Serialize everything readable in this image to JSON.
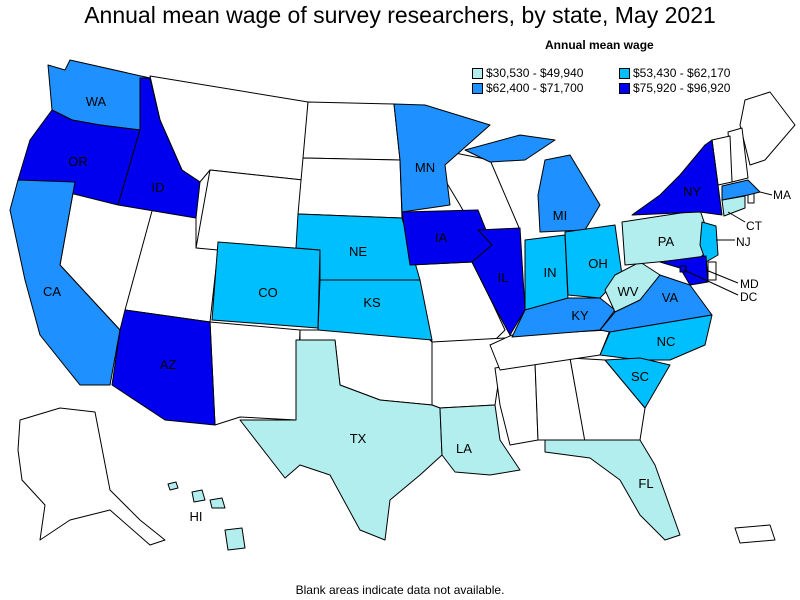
{
  "title": "Annual mean wage of survey researchers, by state, May 2021",
  "legend": {
    "title": "Annual mean wage",
    "items": [
      {
        "label": "$30,530 - $49,940",
        "color": "#b3eeee"
      },
      {
        "label": "$53,430 - $62,170",
        "color": "#00bfff"
      },
      {
        "label": "$62,400 - $71,700",
        "color": "#1e90ff"
      },
      {
        "label": "$75,920 - $96,920",
        "color": "#0000ee"
      }
    ]
  },
  "footnote": "Blank areas indicate data not available.",
  "states": {
    "WA": {
      "label": "WA",
      "bin": 2
    },
    "OR": {
      "label": "OR",
      "bin": 3
    },
    "CA": {
      "label": "CA",
      "bin": 2
    },
    "ID": {
      "label": "ID",
      "bin": 3
    },
    "AZ": {
      "label": "AZ",
      "bin": 3
    },
    "CO": {
      "label": "CO",
      "bin": 1
    },
    "NE": {
      "label": "NE",
      "bin": 1
    },
    "KS": {
      "label": "KS",
      "bin": 1
    },
    "MN": {
      "label": "MN",
      "bin": 2
    },
    "IA": {
      "label": "IA",
      "bin": 3
    },
    "IL": {
      "label": "IL",
      "bin": 3
    },
    "MI": {
      "label": "MI",
      "bin": 2
    },
    "IN": {
      "label": "IN",
      "bin": 1
    },
    "OH": {
      "label": "OH",
      "bin": 1
    },
    "KY": {
      "label": "KY",
      "bin": 2
    },
    "TX": {
      "label": "TX",
      "bin": 0
    },
    "LA": {
      "label": "LA",
      "bin": 0
    },
    "FL": {
      "label": "FL",
      "bin": 0
    },
    "SC": {
      "label": "SC",
      "bin": 1
    },
    "NC": {
      "label": "NC",
      "bin": 1
    },
    "VA": {
      "label": "VA",
      "bin": 2
    },
    "WV": {
      "label": "WV",
      "bin": 0
    },
    "PA": {
      "label": "PA",
      "bin": 0
    },
    "NY": {
      "label": "NY",
      "bin": 3
    },
    "NJ": {
      "label": "NJ",
      "bin": 1
    },
    "MD": {
      "label": "MD",
      "bin": 3
    },
    "DC": {
      "label": "DC",
      "bin": 3
    },
    "CT": {
      "label": "CT",
      "bin": 0
    },
    "MA": {
      "label": "MA",
      "bin": 2
    },
    "HI": {
      "label": "HI",
      "bin": 0
    }
  }
}
